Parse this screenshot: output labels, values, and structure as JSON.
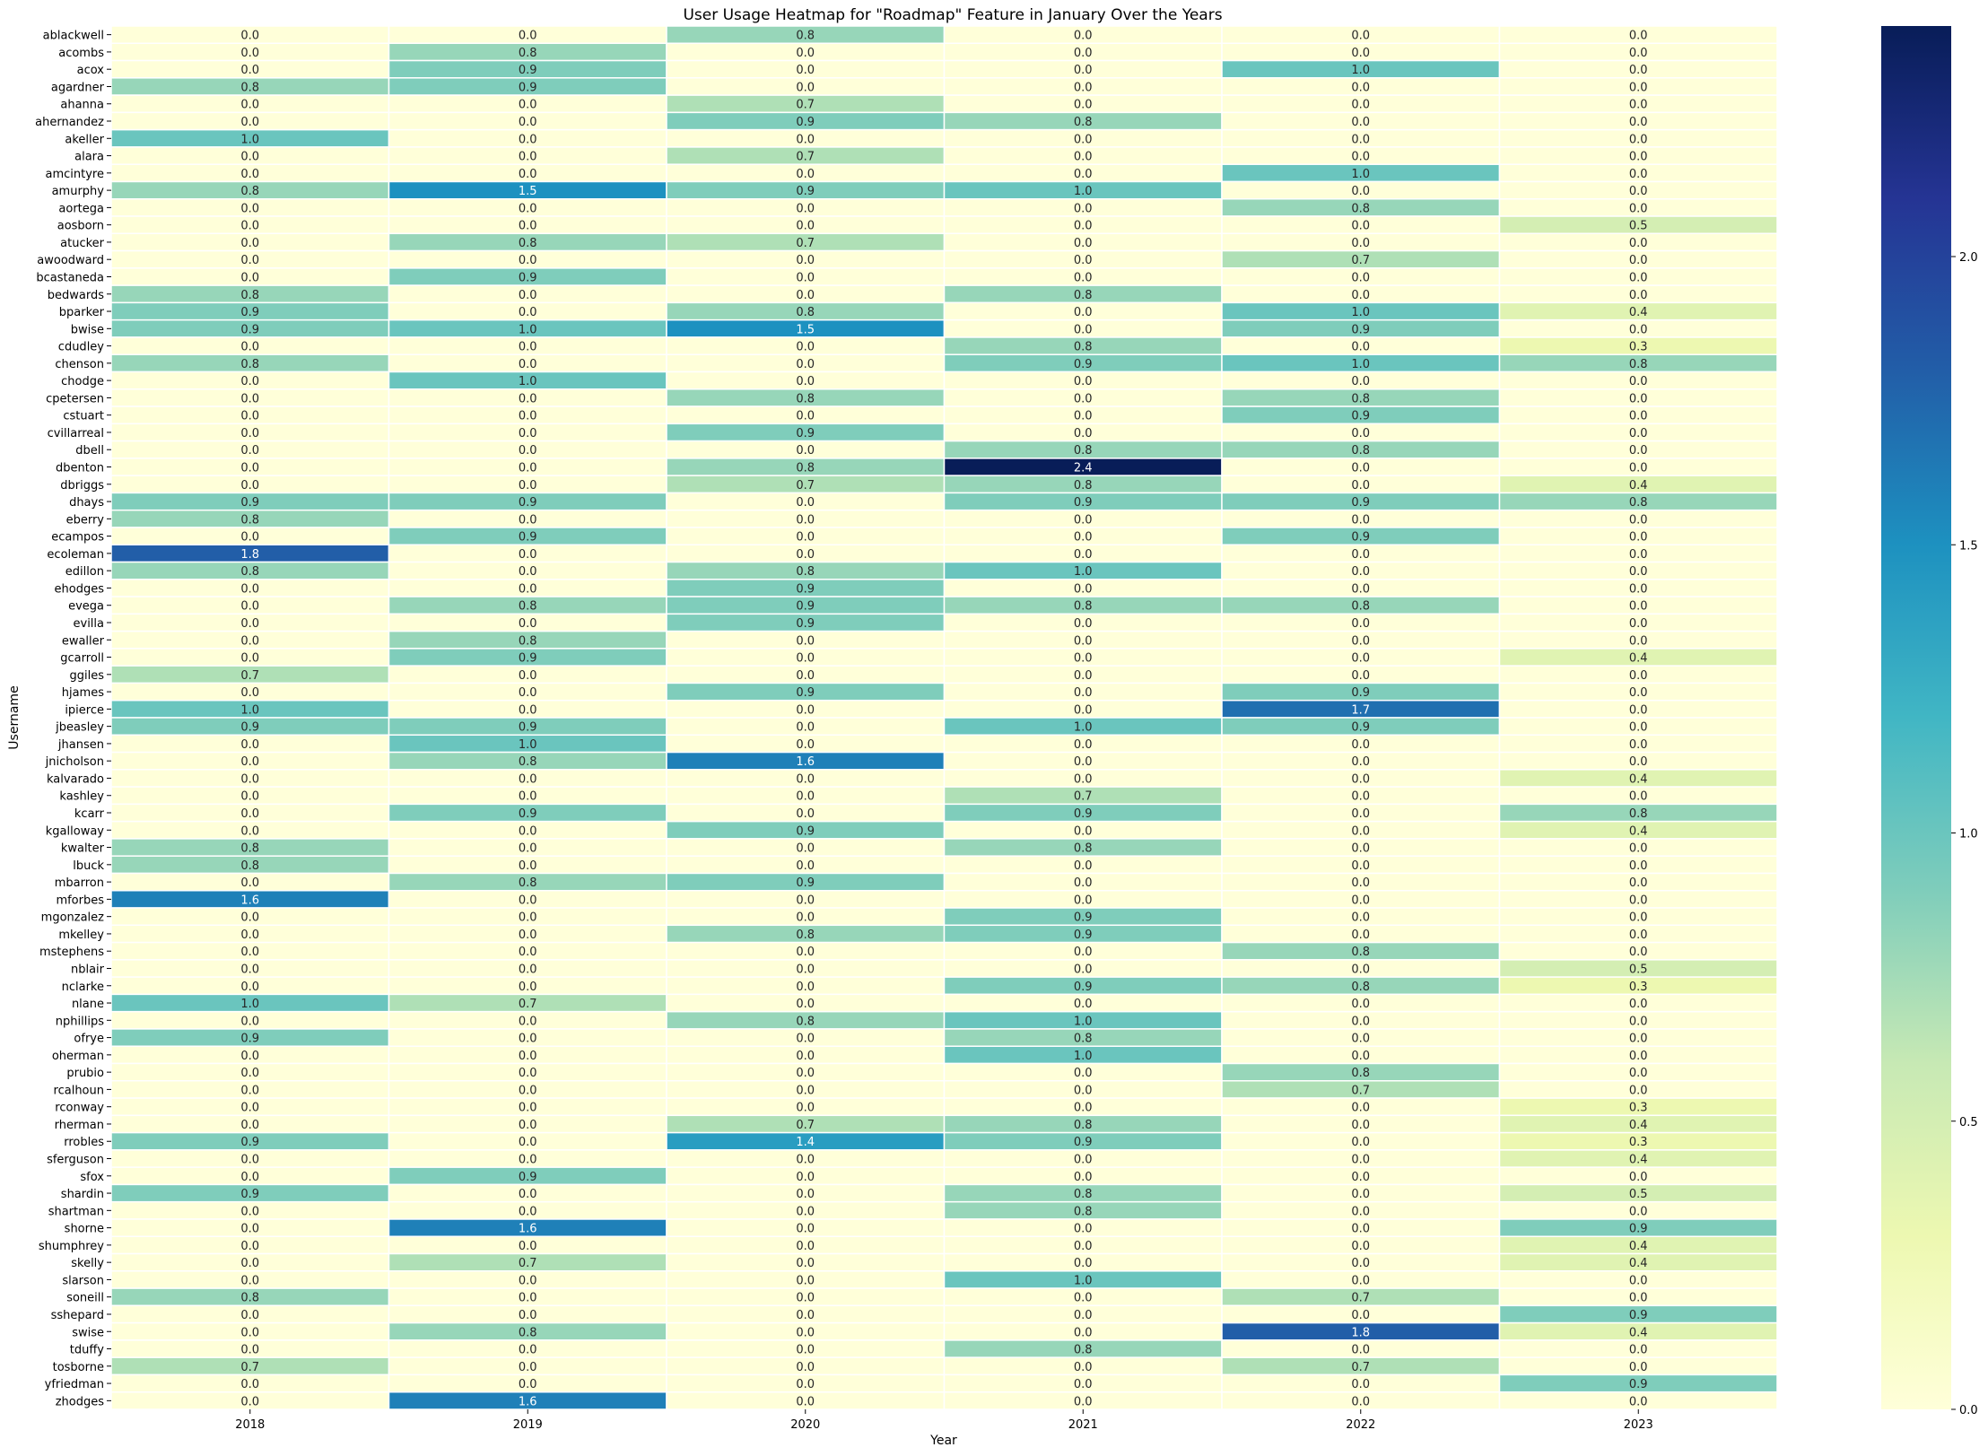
{
  "chart_data": {
    "type": "heatmap",
    "title": "User Usage Heatmap for \"Roadmap\" Feature in January Over the Years",
    "xlabel": "Year",
    "ylabel": "Username",
    "x": [
      "2018",
      "2019",
      "2020",
      "2021",
      "2022",
      "2023"
    ],
    "y": [
      "ablackwell",
      "acombs",
      "acox",
      "agardner",
      "ahanna",
      "ahernandez",
      "akeller",
      "alara",
      "amcintyre",
      "amurphy",
      "aortega",
      "aosborn",
      "atucker",
      "awoodward",
      "bcastaneda",
      "bedwards",
      "bparker",
      "bwise",
      "cdudley",
      "chenson",
      "chodge",
      "cpetersen",
      "cstuart",
      "cvillarreal",
      "dbell",
      "dbenton",
      "dbriggs",
      "dhays",
      "eberry",
      "ecampos",
      "ecoleman",
      "edillon",
      "ehodges",
      "evega",
      "evilla",
      "ewaller",
      "gcarroll",
      "ggiles",
      "hjames",
      "ipierce",
      "jbeasley",
      "jhansen",
      "jnicholson",
      "kalvarado",
      "kashley",
      "kcarr",
      "kgalloway",
      "kwalter",
      "lbuck",
      "mbarron",
      "mforbes",
      "mgonzalez",
      "mkelley",
      "mstephens",
      "nblair",
      "nclarke",
      "nlane",
      "nphillips",
      "ofrye",
      "oherman",
      "prubio",
      "rcalhoun",
      "rconway",
      "rherman",
      "rrobles",
      "sferguson",
      "sfox",
      "shardin",
      "shartman",
      "shorne",
      "shumphrey",
      "skelly",
      "slarson",
      "soneill",
      "sshepard",
      "swise",
      "tduffy",
      "tosborne",
      "yfriedman",
      "zhodges"
    ],
    "values": [
      [
        0.0,
        0.0,
        0.8,
        0.0,
        0.0,
        0.0
      ],
      [
        0.0,
        0.8,
        0.0,
        0.0,
        0.0,
        0.0
      ],
      [
        0.0,
        0.9,
        0.0,
        0.0,
        1.0,
        0.0
      ],
      [
        0.8,
        0.9,
        0.0,
        0.0,
        0.0,
        0.0
      ],
      [
        0.0,
        0.0,
        0.7,
        0.0,
        0.0,
        0.0
      ],
      [
        0.0,
        0.0,
        0.9,
        0.8,
        0.0,
        0.0
      ],
      [
        1.0,
        0.0,
        0.0,
        0.0,
        0.0,
        0.0
      ],
      [
        0.0,
        0.0,
        0.7,
        0.0,
        0.0,
        0.0
      ],
      [
        0.0,
        0.0,
        0.0,
        0.0,
        1.0,
        0.0
      ],
      [
        0.8,
        1.5,
        0.9,
        1.0,
        0.0,
        0.0
      ],
      [
        0.0,
        0.0,
        0.0,
        0.0,
        0.8,
        0.0
      ],
      [
        0.0,
        0.0,
        0.0,
        0.0,
        0.0,
        0.5
      ],
      [
        0.0,
        0.8,
        0.7,
        0.0,
        0.0,
        0.0
      ],
      [
        0.0,
        0.0,
        0.0,
        0.0,
        0.7,
        0.0
      ],
      [
        0.0,
        0.9,
        0.0,
        0.0,
        0.0,
        0.0
      ],
      [
        0.8,
        0.0,
        0.0,
        0.8,
        0.0,
        0.0
      ],
      [
        0.9,
        0.0,
        0.8,
        0.0,
        1.0,
        0.4
      ],
      [
        0.9,
        1.0,
        1.5,
        0.0,
        0.9,
        0.0
      ],
      [
        0.0,
        0.0,
        0.0,
        0.8,
        0.0,
        0.3
      ],
      [
        0.8,
        0.0,
        0.0,
        0.9,
        1.0,
        0.8
      ],
      [
        0.0,
        1.0,
        0.0,
        0.0,
        0.0,
        0.0
      ],
      [
        0.0,
        0.0,
        0.8,
        0.0,
        0.8,
        0.0
      ],
      [
        0.0,
        0.0,
        0.0,
        0.0,
        0.9,
        0.0
      ],
      [
        0.0,
        0.0,
        0.9,
        0.0,
        0.0,
        0.0
      ],
      [
        0.0,
        0.0,
        0.0,
        0.8,
        0.8,
        0.0
      ],
      [
        0.0,
        0.0,
        0.8,
        2.4,
        0.0,
        0.0
      ],
      [
        0.0,
        0.0,
        0.7,
        0.8,
        0.0,
        0.4
      ],
      [
        0.9,
        0.9,
        0.0,
        0.9,
        0.9,
        0.8
      ],
      [
        0.8,
        0.0,
        0.0,
        0.0,
        0.0,
        0.0
      ],
      [
        0.0,
        0.9,
        0.0,
        0.0,
        0.9,
        0.0
      ],
      [
        1.8,
        0.0,
        0.0,
        0.0,
        0.0,
        0.0
      ],
      [
        0.8,
        0.0,
        0.8,
        1.0,
        0.0,
        0.0
      ],
      [
        0.0,
        0.0,
        0.9,
        0.0,
        0.0,
        0.0
      ],
      [
        0.0,
        0.8,
        0.9,
        0.8,
        0.8,
        0.0
      ],
      [
        0.0,
        0.0,
        0.9,
        0.0,
        0.0,
        0.0
      ],
      [
        0.0,
        0.8,
        0.0,
        0.0,
        0.0,
        0.0
      ],
      [
        0.0,
        0.9,
        0.0,
        0.0,
        0.0,
        0.4
      ],
      [
        0.7,
        0.0,
        0.0,
        0.0,
        0.0,
        0.0
      ],
      [
        0.0,
        0.0,
        0.9,
        0.0,
        0.9,
        0.0
      ],
      [
        1.0,
        0.0,
        0.0,
        0.0,
        1.7,
        0.0
      ],
      [
        0.9,
        0.9,
        0.0,
        1.0,
        0.9,
        0.0
      ],
      [
        0.0,
        1.0,
        0.0,
        0.0,
        0.0,
        0.0
      ],
      [
        0.0,
        0.8,
        1.6,
        0.0,
        0.0,
        0.0
      ],
      [
        0.0,
        0.0,
        0.0,
        0.0,
        0.0,
        0.4
      ],
      [
        0.0,
        0.0,
        0.0,
        0.7,
        0.0,
        0.0
      ],
      [
        0.0,
        0.9,
        0.0,
        0.9,
        0.0,
        0.8
      ],
      [
        0.0,
        0.0,
        0.9,
        0.0,
        0.0,
        0.4
      ],
      [
        0.8,
        0.0,
        0.0,
        0.8,
        0.0,
        0.0
      ],
      [
        0.8,
        0.0,
        0.0,
        0.0,
        0.0,
        0.0
      ],
      [
        0.0,
        0.8,
        0.9,
        0.0,
        0.0,
        0.0
      ],
      [
        1.6,
        0.0,
        0.0,
        0.0,
        0.0,
        0.0
      ],
      [
        0.0,
        0.0,
        0.0,
        0.9,
        0.0,
        0.0
      ],
      [
        0.0,
        0.0,
        0.8,
        0.9,
        0.0,
        0.0
      ],
      [
        0.0,
        0.0,
        0.0,
        0.0,
        0.8,
        0.0
      ],
      [
        0.0,
        0.0,
        0.0,
        0.0,
        0.0,
        0.5
      ],
      [
        0.0,
        0.0,
        0.0,
        0.9,
        0.8,
        0.3
      ],
      [
        1.0,
        0.7,
        0.0,
        0.0,
        0.0,
        0.0
      ],
      [
        0.0,
        0.0,
        0.8,
        1.0,
        0.0,
        0.0
      ],
      [
        0.9,
        0.0,
        0.0,
        0.8,
        0.0,
        0.0
      ],
      [
        0.0,
        0.0,
        0.0,
        1.0,
        0.0,
        0.0
      ],
      [
        0.0,
        0.0,
        0.0,
        0.0,
        0.8,
        0.0
      ],
      [
        0.0,
        0.0,
        0.0,
        0.0,
        0.7,
        0.0
      ],
      [
        0.0,
        0.0,
        0.0,
        0.0,
        0.0,
        0.3
      ],
      [
        0.0,
        0.0,
        0.7,
        0.8,
        0.0,
        0.4
      ],
      [
        0.9,
        0.0,
        1.4,
        0.9,
        0.0,
        0.3
      ],
      [
        0.0,
        0.0,
        0.0,
        0.0,
        0.0,
        0.4
      ],
      [
        0.0,
        0.9,
        0.0,
        0.0,
        0.0,
        0.0
      ],
      [
        0.9,
        0.0,
        0.0,
        0.8,
        0.0,
        0.5
      ],
      [
        0.0,
        0.0,
        0.0,
        0.8,
        0.0,
        0.0
      ],
      [
        0.0,
        1.6,
        0.0,
        0.0,
        0.0,
        0.9
      ],
      [
        0.0,
        0.0,
        0.0,
        0.0,
        0.0,
        0.4
      ],
      [
        0.0,
        0.7,
        0.0,
        0.0,
        0.0,
        0.4
      ],
      [
        0.0,
        0.0,
        0.0,
        1.0,
        0.0,
        0.0
      ],
      [
        0.8,
        0.0,
        0.0,
        0.0,
        0.7,
        0.0
      ],
      [
        0.0,
        0.0,
        0.0,
        0.0,
        0.0,
        0.9
      ],
      [
        0.0,
        0.8,
        0.0,
        0.0,
        1.8,
        0.4
      ],
      [
        0.0,
        0.0,
        0.0,
        0.8,
        0.0,
        0.0
      ],
      [
        0.7,
        0.0,
        0.0,
        0.0,
        0.7,
        0.0
      ],
      [
        0.0,
        0.0,
        0.0,
        0.0,
        0.0,
        0.9
      ],
      [
        0.0,
        1.6,
        0.0,
        0.0,
        0.0,
        0.0
      ]
    ],
    "colorbar": {
      "range": [
        0,
        2.4
      ],
      "ticks": [
        "0.0",
        "0.5",
        "1.0",
        "1.5",
        "2.0"
      ],
      "tick_values": [
        0,
        0.5,
        1.0,
        1.5,
        2.0
      ]
    },
    "colormap": "YlGnBu",
    "cell_label_format": "one decimal"
  }
}
